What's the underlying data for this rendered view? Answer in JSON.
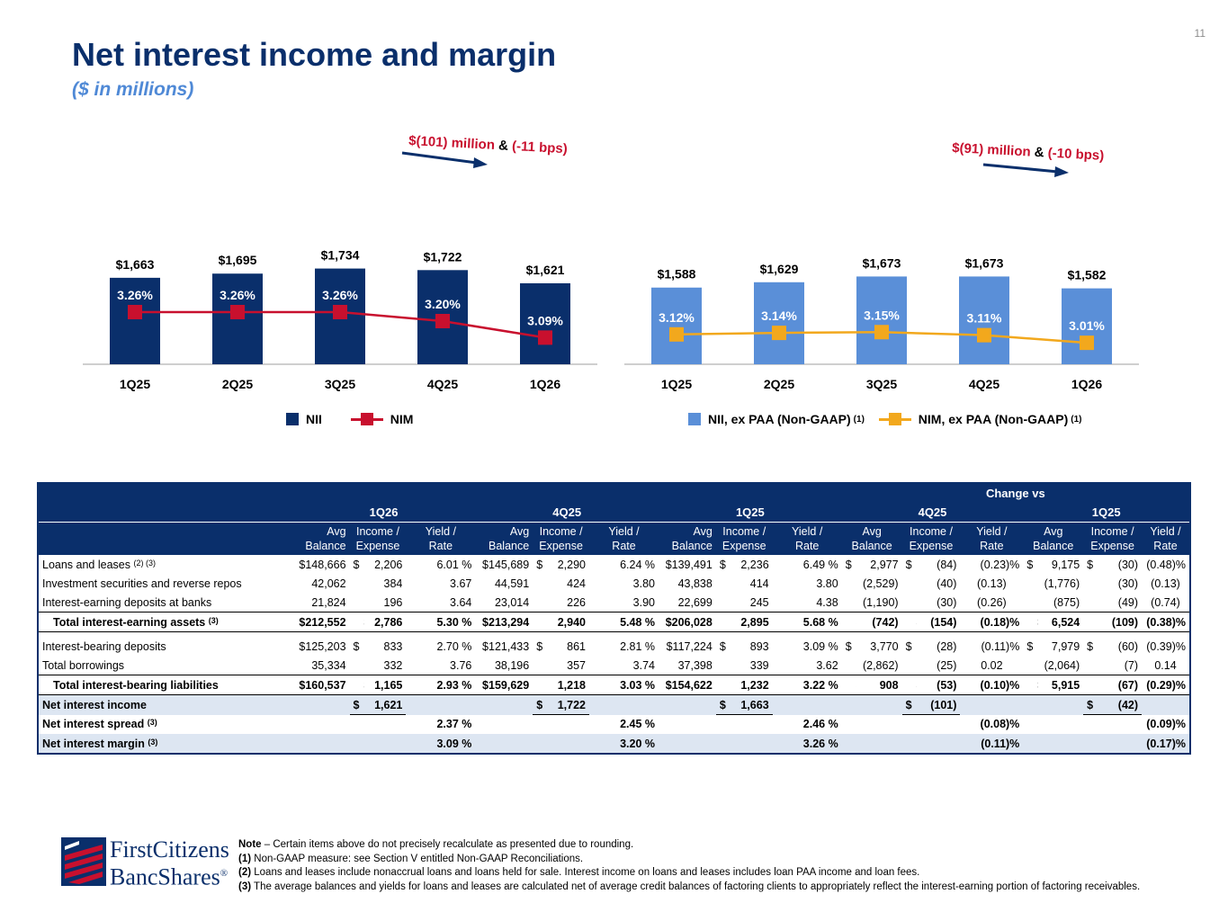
{
  "page_number": "11",
  "title": "Net interest income and margin",
  "subtitle": "($ in millions)",
  "chart_data": [
    {
      "type": "bar",
      "categories": [
        "1Q25",
        "2Q25",
        "3Q25",
        "4Q25",
        "1Q26"
      ],
      "series": [
        {
          "name": "NII",
          "type": "bar",
          "values": [
            1663,
            1695,
            1734,
            1722,
            1621
          ],
          "labels": [
            "$1,663",
            "$1,695",
            "$1,734",
            "$1,722",
            "$1,621"
          ],
          "color": "#0a2f6b"
        },
        {
          "name": "NIM",
          "type": "line",
          "values": [
            3.26,
            3.26,
            3.26,
            3.2,
            3.09
          ],
          "labels": [
            "3.26%",
            "3.26%",
            "3.26%",
            "3.20%",
            "3.09%"
          ],
          "color": "#c8102e"
        }
      ],
      "annotation": {
        "part1": "$(101) million",
        "amp": "&",
        "part2": "(-11 bps)"
      },
      "legend": [
        {
          "label": "NII",
          "note": ""
        },
        {
          "label": "NIM",
          "note": ""
        }
      ],
      "legend_placement": "bottom"
    },
    {
      "type": "bar",
      "categories": [
        "1Q25",
        "2Q25",
        "3Q25",
        "4Q25",
        "1Q26"
      ],
      "series": [
        {
          "name": "NII, ex PAA (Non-GAAP)",
          "type": "bar",
          "values": [
            1588,
            1629,
            1673,
            1673,
            1582
          ],
          "labels": [
            "$1,588",
            "$1,629",
            "$1,673",
            "$1,673",
            "$1,582"
          ],
          "color": "#5a8fd8"
        },
        {
          "name": "NIM, ex PAA (Non-GAAP)",
          "type": "line",
          "values": [
            3.12,
            3.14,
            3.15,
            3.11,
            3.01
          ],
          "labels": [
            "3.12%",
            "3.14%",
            "3.15%",
            "3.11%",
            "3.01%"
          ],
          "color": "#f2a81d"
        }
      ],
      "annotation": {
        "part1": "$(91) million",
        "amp": "&",
        "part2": "(-10 bps)"
      },
      "legend": [
        {
          "label": "NII, ex PAA (Non-GAAP)",
          "note": "(1)"
        },
        {
          "label": "NIM, ex PAA (Non-GAAP)",
          "note": "(1)"
        }
      ],
      "legend_placement": "bottom"
    }
  ],
  "table": {
    "change_vs": "Change vs",
    "periods": [
      "1Q26",
      "4Q25",
      "1Q25",
      "4Q25",
      "1Q25"
    ],
    "col_headers": [
      "Avg\nBalance",
      "Income /\nExpense",
      "Yield /\nRate"
    ],
    "rows": [
      {
        "label": "Loans and leases",
        "fn": "(2) (3)",
        "style": "white",
        "cells": [
          "$148,666",
          "$",
          "2,206",
          "6.01 %",
          "$145,689",
          "$",
          "2,290",
          "6.24 %",
          "$139,491",
          "$",
          "2,236",
          "6.49 %",
          "$",
          "2,977",
          "$",
          "(84)",
          "(0.23)%",
          "$",
          "9,175",
          "$",
          "(30)",
          "(0.48)%"
        ]
      },
      {
        "label": "Investment securities and reverse repos",
        "fn": "",
        "style": "white",
        "cells": [
          "42,062",
          "",
          "384",
          "3.67",
          "44,591",
          "",
          "424",
          "3.80",
          "43,838",
          "",
          "414",
          "3.80",
          "",
          "(2,529)",
          "",
          "(40)",
          "(0.13)",
          "",
          "(1,776)",
          "",
          "(30)",
          "(0.13)"
        ]
      },
      {
        "label": "Interest-earning deposits at banks",
        "fn": "",
        "style": "white",
        "cells": [
          "21,824",
          "",
          "196",
          "3.64",
          "23,014",
          "",
          "226",
          "3.90",
          "22,699",
          "",
          "245",
          "4.38",
          "",
          "(1,190)",
          "",
          "(30)",
          "(0.26)",
          "",
          "(875)",
          "",
          "(49)",
          "(0.74)"
        ]
      },
      {
        "label": "Total interest-earning assets",
        "fn": "(3)",
        "style": "total",
        "cells": [
          "$212,552",
          "$",
          "2,786",
          "5.30 %",
          "$213,294",
          "$",
          "2,940",
          "5.48 %",
          "$206,028",
          "$",
          "2,895",
          "5.68 %",
          "$",
          "(742)",
          "$",
          "(154)",
          "(0.18)%",
          "$",
          "6,524",
          "$",
          "(109)",
          "(0.38)%"
        ]
      },
      {
        "label": "Interest-bearing deposits",
        "fn": "",
        "style": "white",
        "cells": [
          "$125,203",
          "$",
          "833",
          "2.70 %",
          "$121,433",
          "$",
          "861",
          "2.81 %",
          "$117,224",
          "$",
          "893",
          "3.09 %",
          "$",
          "3,770",
          "$",
          "(28)",
          "(0.11)%",
          "$",
          "7,979",
          "$",
          "(60)",
          "(0.39)%"
        ]
      },
      {
        "label": "Total borrowings",
        "fn": "",
        "style": "white",
        "cells": [
          "35,334",
          "",
          "332",
          "3.76",
          "38,196",
          "",
          "357",
          "3.74",
          "37,398",
          "",
          "339",
          "3.62",
          "",
          "(2,862)",
          "",
          "(25)",
          "0.02",
          "",
          "(2,064)",
          "",
          "(7)",
          "0.14"
        ]
      },
      {
        "label": "Total interest-bearing liabilities",
        "fn": "",
        "style": "total",
        "cells": [
          "$160,537",
          "$",
          "1,165",
          "2.93 %",
          "$159,629",
          "$",
          "1,218",
          "3.03 %",
          "$154,622",
          "$",
          "1,232",
          "3.22 %",
          "$",
          "908",
          "$",
          "(53)",
          "(0.10)%",
          "$",
          "5,915",
          "$",
          "(67)",
          "(0.29)%"
        ]
      },
      {
        "label": "Net interest income",
        "fn": "",
        "style": "shade",
        "cells": [
          "",
          "$",
          "1,621",
          "",
          "",
          "$",
          "1,722",
          "",
          "",
          "$",
          "1,663",
          "",
          "",
          "",
          "$",
          "(101)",
          "",
          "",
          "",
          "$",
          "(42)",
          ""
        ]
      },
      {
        "label": "Net interest spread",
        "fn": "(3)",
        "style": "white",
        "cells": [
          "",
          "",
          "",
          "2.37 %",
          "",
          "",
          "",
          "2.45 %",
          "",
          "",
          "",
          "2.46 %",
          "",
          "",
          "",
          "",
          "(0.08)%",
          "",
          "",
          "",
          "",
          "(0.09)%"
        ]
      },
      {
        "label": "Net interest margin",
        "fn": "(3)",
        "style": "shade",
        "cells": [
          "",
          "",
          "",
          "3.09 %",
          "",
          "",
          "",
          "3.20 %",
          "",
          "",
          "",
          "3.26 %",
          "",
          "",
          "",
          "",
          "(0.11)%",
          "",
          "",
          "",
          "",
          "(0.17)%"
        ]
      }
    ]
  },
  "logo": {
    "line1": "FirstCitizens",
    "line2": "BancShares",
    "reg": "®"
  },
  "notes": [
    {
      "lead": "Note",
      "text": " – Certain items above do not precisely recalculate as presented due to rounding."
    },
    {
      "lead": "(1)",
      "text": "  Non-GAAP measure: see Section V entitled Non-GAAP Reconciliations."
    },
    {
      "lead": "(2)",
      "text": "  Loans and leases include nonaccrual loans and loans held for sale. Interest income on loans and leases includes loan PAA income and loan fees."
    },
    {
      "lead": "(3)",
      "text": "  The average balances and yields for loans and leases are calculated net of average credit balances of factoring clients to appropriately reflect the interest-earning portion of factoring receivables."
    }
  ]
}
